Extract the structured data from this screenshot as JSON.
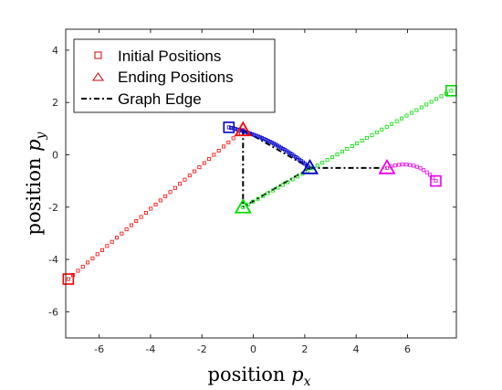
{
  "chart_data": {
    "type": "scatter",
    "xlabel": {
      "main": "position ",
      "var": "p",
      "sub": "x"
    },
    "ylabel": {
      "main": "position ",
      "var": "p",
      "sub": "y"
    },
    "xlim": [
      -7.3,
      7.9
    ],
    "ylim": [
      -7,
      4.8
    ],
    "xticks": [
      -6,
      -4,
      -2,
      0,
      2,
      4,
      6
    ],
    "yticks": [
      -6,
      -4,
      -2,
      0,
      2,
      4
    ],
    "grid": false,
    "legend": {
      "placement": "top-left",
      "entries": [
        {
          "label": "Initial Positions",
          "marker": "square",
          "color": "#cc0000"
        },
        {
          "label": "Ending Positions",
          "marker": "triangle",
          "color": "#cc0000"
        },
        {
          "label": "Graph Edge",
          "marker": "dashdot-line",
          "color": "#000000"
        }
      ]
    },
    "series": [
      {
        "color": "#ff0000",
        "start": [
          -7.2,
          -4.75
        ],
        "end": [
          -0.4,
          0.95
        ],
        "samples": 36,
        "curve": 0
      },
      {
        "color": "#0000cc",
        "start": [
          -0.95,
          1.05
        ],
        "end": [
          2.2,
          -0.5
        ],
        "samples": 42,
        "curve": 0.12
      },
      {
        "color": "#00dd00",
        "start": [
          7.7,
          2.45
        ],
        "end": [
          -0.4,
          -2.0
        ],
        "samples": 42,
        "curve": 0
      },
      {
        "color": "#ee00ee",
        "start": [
          7.1,
          -1.0
        ],
        "end": [
          5.2,
          -0.5
        ],
        "samples": 14,
        "curve": -0.35
      }
    ],
    "edges": [
      {
        "from": 0,
        "to": 1
      },
      {
        "from": 0,
        "to": 2
      },
      {
        "from": 1,
        "to": 2
      },
      {
        "from": 1,
        "to": 3
      }
    ]
  }
}
